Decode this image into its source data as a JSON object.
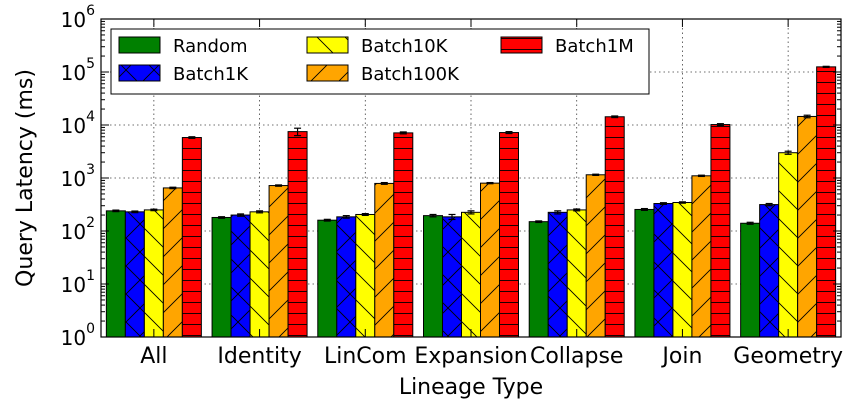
{
  "chart_data": {
    "type": "bar",
    "xlabel": "Lineage Type",
    "ylabel": "Query Latency (ms)",
    "yscale": "log",
    "ylim": [
      1,
      1000000
    ],
    "yticks": [
      {
        "value": 1,
        "base": "10",
        "exp": "0"
      },
      {
        "value": 10,
        "base": "10",
        "exp": "1"
      },
      {
        "value": 100,
        "base": "10",
        "exp": "2"
      },
      {
        "value": 1000,
        "base": "10",
        "exp": "3"
      },
      {
        "value": 10000,
        "base": "10",
        "exp": "4"
      },
      {
        "value": 100000,
        "base": "10",
        "exp": "5"
      },
      {
        "value": 1000000,
        "base": "10",
        "exp": "6"
      }
    ],
    "grid": true,
    "legend_position": "top-left",
    "legend_columns": 3,
    "categories": [
      "All",
      "Identity",
      "LinCom",
      "Expansion",
      "Collapse",
      "Join",
      "Geometry"
    ],
    "series": [
      {
        "name": "Random",
        "color": "#008000",
        "hatch": "none",
        "values": [
          240,
          180,
          160,
          195,
          150,
          255,
          140
        ]
      },
      {
        "name": "Batch1K",
        "color": "#0000ff",
        "hatch": "cross",
        "values": [
          230,
          200,
          185,
          185,
          225,
          330,
          315
        ]
      },
      {
        "name": "Batch10K",
        "color": "#ffff00",
        "hatch": "backslash",
        "values": [
          250,
          230,
          205,
          225,
          250,
          345,
          3000
        ]
      },
      {
        "name": "Batch100K",
        "color": "#ffa500",
        "hatch": "slash",
        "values": [
          650,
          720,
          790,
          800,
          1150,
          1100,
          14500
        ]
      },
      {
        "name": "Batch1M",
        "color": "#ff0000",
        "hatch": "horizontal",
        "values": [
          5800,
          7500,
          7100,
          7200,
          14300,
          10200,
          125000
        ]
      }
    ],
    "error_bars": [
      [
        8,
        6,
        6,
        10,
        5,
        10,
        6
      ],
      [
        8,
        10,
        10,
        20,
        15,
        12,
        15
      ],
      [
        8,
        10,
        8,
        15,
        10,
        10,
        200
      ],
      [
        20,
        20,
        30,
        20,
        30,
        30,
        800
      ],
      [
        200,
        1200,
        300,
        300,
        500,
        400,
        3000
      ]
    ]
  }
}
